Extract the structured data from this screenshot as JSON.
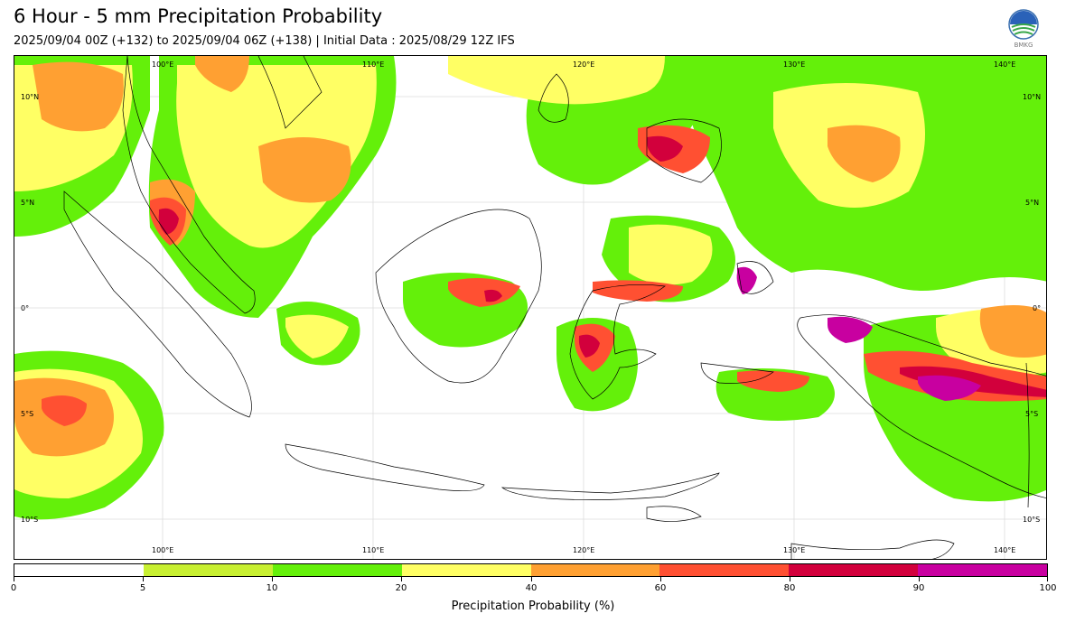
{
  "header": {
    "title": "6 Hour - 5 mm Precipitation Probability",
    "subtitle": "2025/09/04 00Z (+132) to 2025/09/04 06Z (+138) | Initial Data : 2025/08/29 12Z IFS",
    "logo_text": "BMKG"
  },
  "map": {
    "region": "Indonesia / Maritime Continent",
    "lon_labels": [
      "100°E",
      "110°E",
      "120°E",
      "130°E",
      "140°E"
    ],
    "lat_labels": [
      "10°N",
      "5°N",
      "0°",
      "5°S",
      "10°S"
    ],
    "land_color": "#ffffff",
    "coastline_color": "#000000",
    "gridline_color": "#cccccc",
    "gridlines": true
  },
  "colorbar": {
    "label": "Precipitation Probability (%)",
    "ticks": [
      "0",
      "5",
      "10",
      "20",
      "40",
      "60",
      "80",
      "90",
      "100"
    ],
    "colors": [
      "#ffffff",
      "#c8f032",
      "#64f00a",
      "#ffff64",
      "#ffa032",
      "#ff5032",
      "#d2003c",
      "#c800a0"
    ]
  }
}
